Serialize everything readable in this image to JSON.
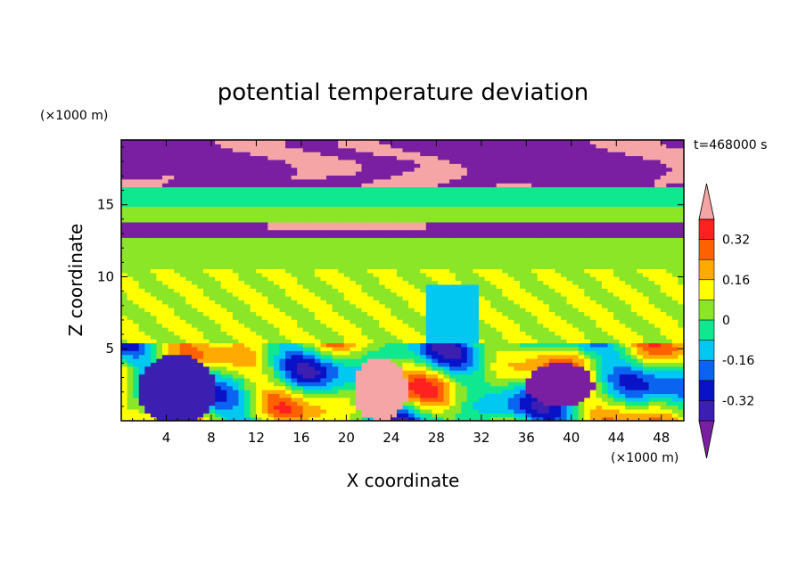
{
  "chart_data": {
    "type": "heatmap",
    "title": "potential temperature deviation",
    "xlabel": "X coordinate",
    "ylabel": "Z coordinate",
    "x_unit_label": "(×1000 m)",
    "y_unit_label": "(×1000 m)",
    "time_label": "t=468000 s",
    "xlim": [
      0,
      50
    ],
    "ylim": [
      0,
      19.5
    ],
    "x_ticks": [
      4,
      8,
      12,
      16,
      20,
      24,
      28,
      32,
      36,
      40,
      44,
      48
    ],
    "y_ticks": [
      5,
      10,
      15
    ],
    "colorbar": {
      "levels": [
        -0.4,
        -0.32,
        -0.24,
        -0.16,
        -0.08,
        0,
        0.08,
        0.16,
        0.24,
        0.32,
        0.4
      ],
      "tick_labels": [
        "0.32",
        "0.16",
        "0",
        "-0.16",
        "-0.32"
      ],
      "colors_low_to_high": [
        "#7a1fa2",
        "#3c1fb0",
        "#0a12c8",
        "#0a64f0",
        "#00c8f0",
        "#10e890",
        "#8ce628",
        "#ffff00",
        "#ffaa00",
        "#ff6000",
        "#ff2020",
        "#f5a5a5"
      ],
      "extend": "both"
    },
    "layers": [
      {
        "z_range": [
          16.2,
          19.5
        ],
        "description_value": "alternating -0.48 and +0.48 patches"
      },
      {
        "z_range": [
          15.8,
          16.2
        ],
        "value": -0.04
      },
      {
        "z_range": [
          14.8,
          15.8
        ],
        "value": -0.08
      },
      {
        "z_range": [
          13.9,
          14.8
        ],
        "value": 0.02
      },
      {
        "z_range": [
          12.8,
          13.9
        ],
        "value": -0.42
      },
      {
        "z_range": [
          10.5,
          12.8
        ],
        "value": 0.04
      },
      {
        "z_range": [
          5.3,
          10.5
        ],
        "value": 0.08
      },
      {
        "z_range": [
          0,
          5.3
        ],
        "value": 0.0
      }
    ]
  }
}
